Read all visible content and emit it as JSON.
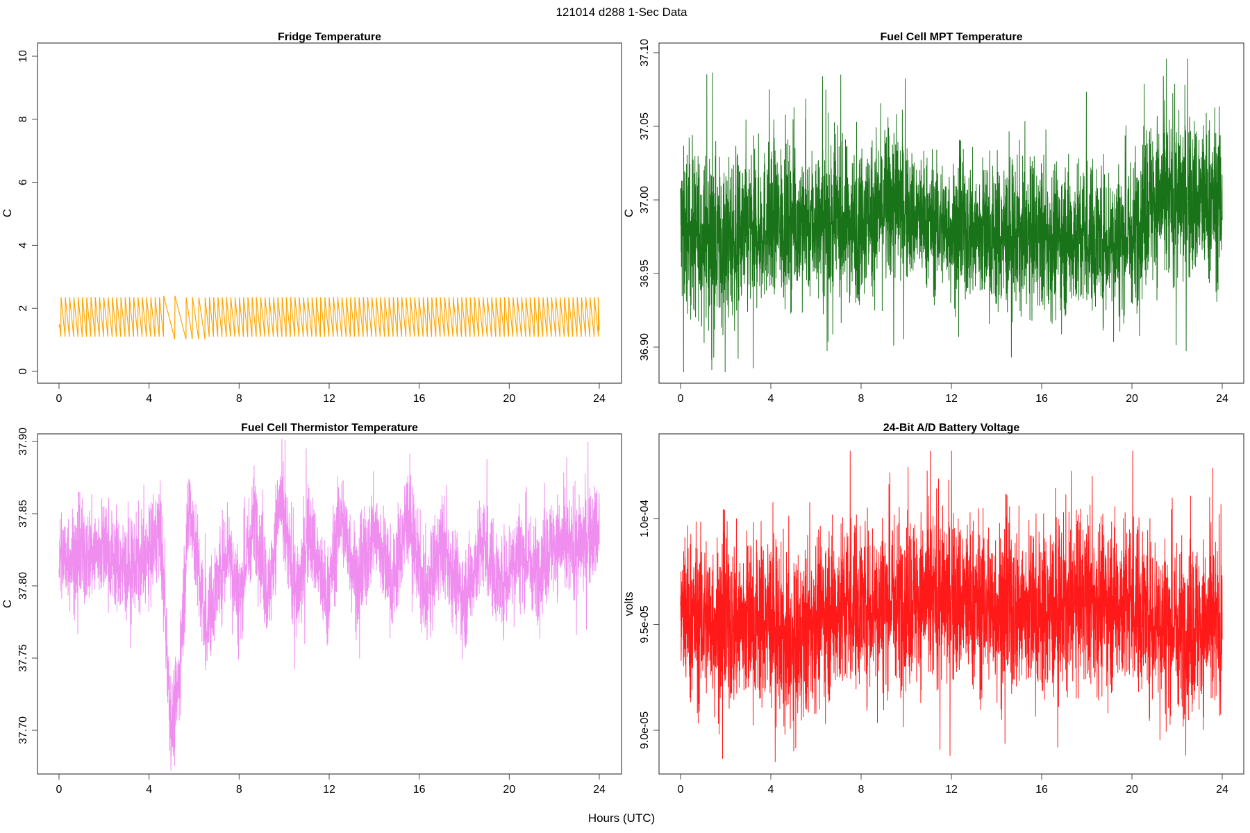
{
  "page_title": "121014   d288   1-Sec Data",
  "xlabel": "Hours (UTC)",
  "chart_data": [
    {
      "type": "line",
      "title": "Fridge Temperature",
      "ylabel": "C",
      "color": "#FFA500",
      "xlim": [
        0,
        24
      ],
      "ylim": [
        0,
        10
      ],
      "xticks": [
        "0",
        "4",
        "8",
        "12",
        "16",
        "20",
        "24"
      ],
      "yticks": [
        "0",
        "2",
        "4",
        "6",
        "8",
        "10"
      ],
      "pattern": "sawtooth",
      "sawtooth_min": 1.1,
      "sawtooth_max": 2.35,
      "cycle_hours": 0.19,
      "start_value": 1.4,
      "end_value": 1.3
    },
    {
      "type": "line",
      "title": "Fuel Cell MPT Temperature",
      "ylabel": "C",
      "color": "#006400",
      "xlim": [
        0,
        24
      ],
      "ylim": [
        36.88,
        37.1
      ],
      "xticks": [
        "0",
        "4",
        "8",
        "12",
        "16",
        "20",
        "24"
      ],
      "yticks": [
        "36.90",
        "36.95",
        "37.00",
        "37.05",
        "37.10"
      ],
      "envelope": {
        "x": [
          0,
          2,
          4,
          6,
          8,
          9.5,
          10,
          12,
          14,
          16,
          18,
          20,
          20.7,
          22,
          24
        ],
        "lower": [
          36.93,
          36.92,
          36.94,
          36.94,
          36.94,
          36.95,
          36.95,
          36.94,
          36.93,
          36.93,
          36.93,
          36.93,
          36.95,
          36.95,
          36.95
        ],
        "upper": [
          37.03,
          37.02,
          37.03,
          37.03,
          37.03,
          37.05,
          37.03,
          37.02,
          37.02,
          37.02,
          37.02,
          37.02,
          37.05,
          37.05,
          37.05
        ]
      },
      "extremes": {
        "max": 37.096,
        "min": 36.883
      }
    },
    {
      "type": "line",
      "title": "Fuel Cell Thermistor Temperature",
      "ylabel": "C",
      "color": "#EE82EE",
      "xlim": [
        0,
        24
      ],
      "ylim": [
        37.665,
        37.91
      ],
      "xticks": [
        "0",
        "4",
        "8",
        "12",
        "16",
        "20",
        "24"
      ],
      "yticks": [
        "37.70",
        "37.75",
        "37.80",
        "37.85",
        "37.90"
      ],
      "envelope": {
        "x": [
          0,
          1,
          2,
          3,
          4,
          4.5,
          5,
          5.3,
          5.8,
          6.5,
          7.5,
          8,
          8.7,
          9.3,
          9.8,
          10.6,
          11.1,
          11.9,
          12.5,
          13.3,
          14,
          14.8,
          15.5,
          16.3,
          17,
          18,
          18.8,
          19.6,
          20.4,
          21.2,
          22,
          23,
          24
        ],
        "center": [
          37.82,
          37.82,
          37.825,
          37.81,
          37.82,
          37.84,
          37.7,
          37.73,
          37.86,
          37.77,
          37.83,
          37.79,
          37.85,
          37.79,
          37.86,
          37.79,
          37.84,
          37.79,
          37.85,
          37.8,
          37.84,
          37.8,
          37.85,
          37.79,
          37.83,
          37.79,
          37.83,
          37.8,
          37.825,
          37.81,
          37.83,
          37.825,
          37.84
        ],
        "half_width": 0.03
      },
      "extremes": {
        "max": 37.905,
        "min": 37.672
      }
    },
    {
      "type": "line",
      "title": "24-Bit A/D Battery Voltage",
      "ylabel": "volts",
      "color": "#FF0000",
      "xlim": [
        0,
        24
      ],
      "ylim": [
        8.88e-05,
        0.0001033
      ],
      "xticks": [
        "0",
        "4",
        "8",
        "12",
        "16",
        "20",
        "24"
      ],
      "yticks": [
        "9.0e-05",
        "9.5e-05",
        "1.0e-04"
      ],
      "envelope": {
        "x": [
          0,
          2,
          4,
          5,
          6,
          8,
          10,
          12,
          14,
          16,
          18,
          20,
          22,
          24
        ],
        "center": [
          9.55e-05,
          9.5e-05,
          9.52e-05,
          9.35e-05,
          9.55e-05,
          9.6e-05,
          9.62e-05,
          9.62e-05,
          9.58e-05,
          9.55e-05,
          9.62e-05,
          9.6e-05,
          9.48e-05,
          9.5e-05
        ],
        "half_width": 3.6e-06
      },
      "extremes": {
        "max": 0.0001032,
        "min": 8.85e-05
      }
    }
  ]
}
